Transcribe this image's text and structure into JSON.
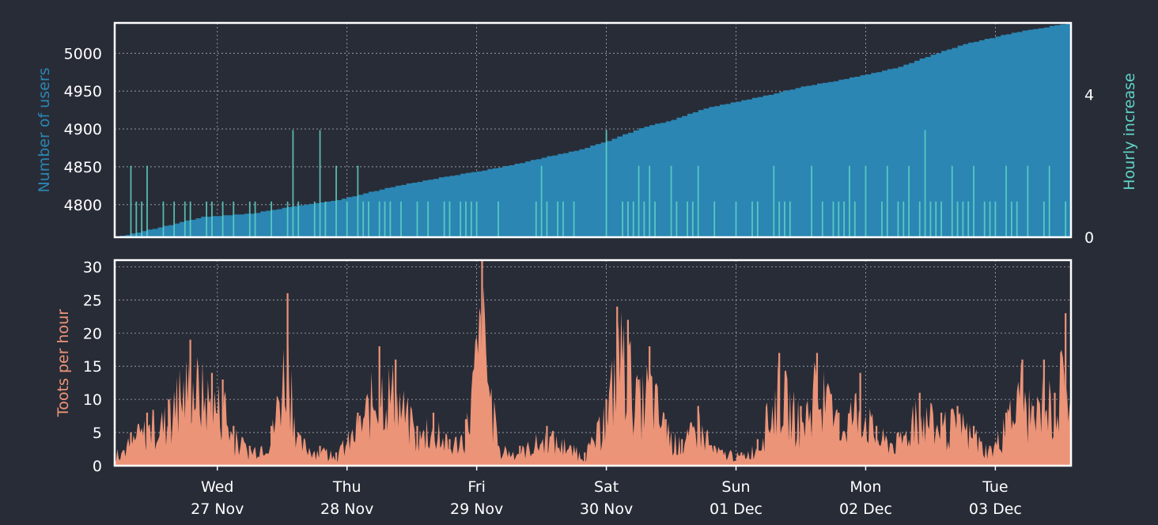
{
  "colors": {
    "background": "#282c37",
    "users_area": "#2b86b3",
    "hourly_increase": "#5fd3c4",
    "toots": "#ec9478",
    "axis_text": "#ffffff",
    "grid": "#a9acb4",
    "frame": "#ffffff"
  },
  "chart_data": [
    {
      "type": "area",
      "ylabel": "Number of users",
      "ylim": [
        4757,
        5040
      ],
      "yticks": [
        4800,
        4850,
        4900,
        4950,
        5000
      ],
      "grid": true,
      "x_range": [
        "2019-11-26T05:00",
        "2019-12-03T14:00"
      ],
      "series": [
        {
          "kind": "area",
          "points": [
            [
              "2019-11-26T05:00",
              4757
            ],
            [
              "2019-11-26T10:00",
              4765
            ],
            [
              "2019-11-26T16:00",
              4775
            ],
            [
              "2019-11-26T21:00",
              4784
            ],
            [
              "2019-11-27T06:00",
              4788
            ],
            [
              "2019-11-27T14:00",
              4798
            ],
            [
              "2019-11-27T22:00",
              4806
            ],
            [
              "2019-11-28T06:00",
              4820
            ],
            [
              "2019-11-28T12:00",
              4829
            ],
            [
              "2019-11-28T18:00",
              4837
            ],
            [
              "2019-11-29T00:00",
              4844
            ],
            [
              "2019-11-29T06:00",
              4852
            ],
            [
              "2019-11-29T12:00",
              4862
            ],
            [
              "2019-11-29T18:00",
              4871
            ],
            [
              "2019-11-30T00:00",
              4884
            ],
            [
              "2019-11-30T06:00",
              4901
            ],
            [
              "2019-11-30T12:00",
              4912
            ],
            [
              "2019-11-30T18:00",
              4927
            ],
            [
              "2019-12-01T00:00",
              4936
            ],
            [
              "2019-12-01T06:00",
              4945
            ],
            [
              "2019-12-01T12:00",
              4956
            ],
            [
              "2019-12-01T18:00",
              4963
            ],
            [
              "2019-12-02T00:00",
              4972
            ],
            [
              "2019-12-02T06:00",
              4982
            ],
            [
              "2019-12-02T12:00",
              4998
            ],
            [
              "2019-12-02T18:00",
              5012
            ],
            [
              "2019-12-03T00:00",
              5022
            ],
            [
              "2019-12-03T06:00",
              5031
            ],
            [
              "2019-12-03T14:00",
              5040
            ]
          ]
        },
        {
          "kind": "bar",
          "axis": "right",
          "ylabel_right": "Hourly increase",
          "ylim_right": [
            0,
            6
          ],
          "yticks_right": [
            0,
            4
          ],
          "spikes": [
            [
              "2019-11-26T05:00",
              2
            ],
            [
              "2019-11-26T08:00",
              2
            ],
            [
              "2019-11-26T11:00",
              2
            ],
            [
              "2019-11-26T16:00",
              1
            ],
            [
              "2019-11-26T22:00",
              1
            ],
            [
              "2019-11-27T14:00",
              3
            ],
            [
              "2019-11-27T19:00",
              3
            ],
            [
              "2019-11-27T22:00",
              2
            ],
            [
              "2019-11-28T02:00",
              2
            ],
            [
              "2019-11-29T00:00",
              1
            ],
            [
              "2019-11-29T12:00",
              2
            ],
            [
              "2019-11-29T18:00",
              1
            ],
            [
              "2019-11-30T00:00",
              3
            ],
            [
              "2019-11-30T06:00",
              2
            ],
            [
              "2019-11-30T08:00",
              2
            ],
            [
              "2019-11-30T12:00",
              2
            ],
            [
              "2019-11-30T17:00",
              2
            ],
            [
              "2019-12-01T00:00",
              1
            ],
            [
              "2019-12-01T04:00",
              1
            ],
            [
              "2019-12-01T07:00",
              2
            ],
            [
              "2019-12-01T14:00",
              2
            ],
            [
              "2019-12-01T21:00",
              2
            ],
            [
              "2019-12-02T00:00",
              2
            ],
            [
              "2019-12-02T04:00",
              2
            ],
            [
              "2019-12-02T08:00",
              2
            ],
            [
              "2019-12-02T11:00",
              3
            ],
            [
              "2019-12-02T16:00",
              2
            ],
            [
              "2019-12-02T20:00",
              2
            ],
            [
              "2019-12-03T02:00",
              2
            ],
            [
              "2019-12-03T06:00",
              2
            ],
            [
              "2019-12-03T10:00",
              2
            ],
            [
              "2019-12-03T13:00",
              1
            ]
          ],
          "baseline_activity": "0-1 users most hours"
        }
      ]
    },
    {
      "type": "area",
      "ylabel": "Toots per hour",
      "ylim": [
        0,
        31
      ],
      "yticks": [
        0,
        5,
        10,
        15,
        20,
        25,
        30
      ],
      "grid": true,
      "x_range": [
        "2019-11-26T05:00",
        "2019-12-03T14:00"
      ],
      "xticks": [
        {
          "date": "2019-11-27",
          "day": "Wed",
          "label": "27 Nov"
        },
        {
          "date": "2019-11-28",
          "day": "Thu",
          "label": "28 Nov"
        },
        {
          "date": "2019-11-29",
          "day": "Fri",
          "label": "29 Nov"
        },
        {
          "date": "2019-11-30",
          "day": "Sat",
          "label": "30 Nov"
        },
        {
          "date": "2019-12-01",
          "day": "Sun",
          "label": "01 Dec"
        },
        {
          "date": "2019-12-02",
          "day": "Mon",
          "label": "02 Dec"
        },
        {
          "date": "2019-12-03",
          "day": "Tue",
          "label": "03 Dec"
        }
      ],
      "series": [
        {
          "kind": "area",
          "peaks": [
            [
              "2019-11-26T05:00",
              2
            ],
            [
              "2019-11-26T08:00",
              5
            ],
            [
              "2019-11-26T11:00",
              8
            ],
            [
              "2019-11-26T15:00",
              10
            ],
            [
              "2019-11-26T19:00",
              19
            ],
            [
              "2019-11-26T23:00",
              14
            ],
            [
              "2019-11-27T01:00",
              13
            ],
            [
              "2019-11-27T03:00",
              6
            ],
            [
              "2019-11-27T06:00",
              3
            ],
            [
              "2019-11-27T10:00",
              6
            ],
            [
              "2019-11-27T13:00",
              26
            ],
            [
              "2019-11-27T15:00",
              5
            ],
            [
              "2019-11-27T19:00",
              3
            ],
            [
              "2019-11-27T22:00",
              2
            ],
            [
              "2019-11-28T02:00",
              8
            ],
            [
              "2019-11-28T06:00",
              18
            ],
            [
              "2019-11-28T09:00",
              16
            ],
            [
              "2019-11-28T13:00",
              6
            ],
            [
              "2019-11-28T16:00",
              8
            ],
            [
              "2019-11-28T19:00",
              4
            ],
            [
              "2019-11-28T22:00",
              7
            ],
            [
              "2019-11-29T01:00",
              31
            ],
            [
              "2019-11-29T04:00",
              3
            ],
            [
              "2019-11-29T08:00",
              3
            ],
            [
              "2019-11-29T13:00",
              6
            ],
            [
              "2019-11-29T20:00",
              2
            ],
            [
              "2019-11-30T00:00",
              10
            ],
            [
              "2019-11-30T02:00",
              24
            ],
            [
              "2019-11-30T04:00",
              22
            ],
            [
              "2019-11-30T06:00",
              13
            ],
            [
              "2019-11-30T08:00",
              18
            ],
            [
              "2019-11-30T11:00",
              7
            ],
            [
              "2019-11-30T14:00",
              4
            ],
            [
              "2019-11-30T17:00",
              9
            ],
            [
              "2019-11-30T20:00",
              3
            ],
            [
              "2019-12-01T01:00",
              2
            ],
            [
              "2019-12-01T04:00",
              4
            ],
            [
              "2019-12-01T08:00",
              17
            ],
            [
              "2019-12-01T12:00",
              9
            ],
            [
              "2019-12-01T15:00",
              17
            ],
            [
              "2019-12-01T19:00",
              8
            ],
            [
              "2019-12-01T23:00",
              14
            ],
            [
              "2019-12-02T02:00",
              6
            ],
            [
              "2019-12-02T06:00",
              5
            ],
            [
              "2019-12-02T10:00",
              11
            ],
            [
              "2019-12-02T14:00",
              8
            ],
            [
              "2019-12-02T17:00",
              9
            ],
            [
              "2019-12-02T20:00",
              6
            ],
            [
              "2019-12-02T23:00",
              3
            ],
            [
              "2019-12-03T02:00",
              8
            ],
            [
              "2019-12-03T05:00",
              16
            ],
            [
              "2019-12-03T07:00",
              9
            ],
            [
              "2019-12-03T09:00",
              16
            ],
            [
              "2019-12-03T11:00",
              11
            ],
            [
              "2019-12-03T13:00",
              23
            ],
            [
              "2019-12-03T14:00",
              5
            ]
          ]
        }
      ]
    }
  ]
}
